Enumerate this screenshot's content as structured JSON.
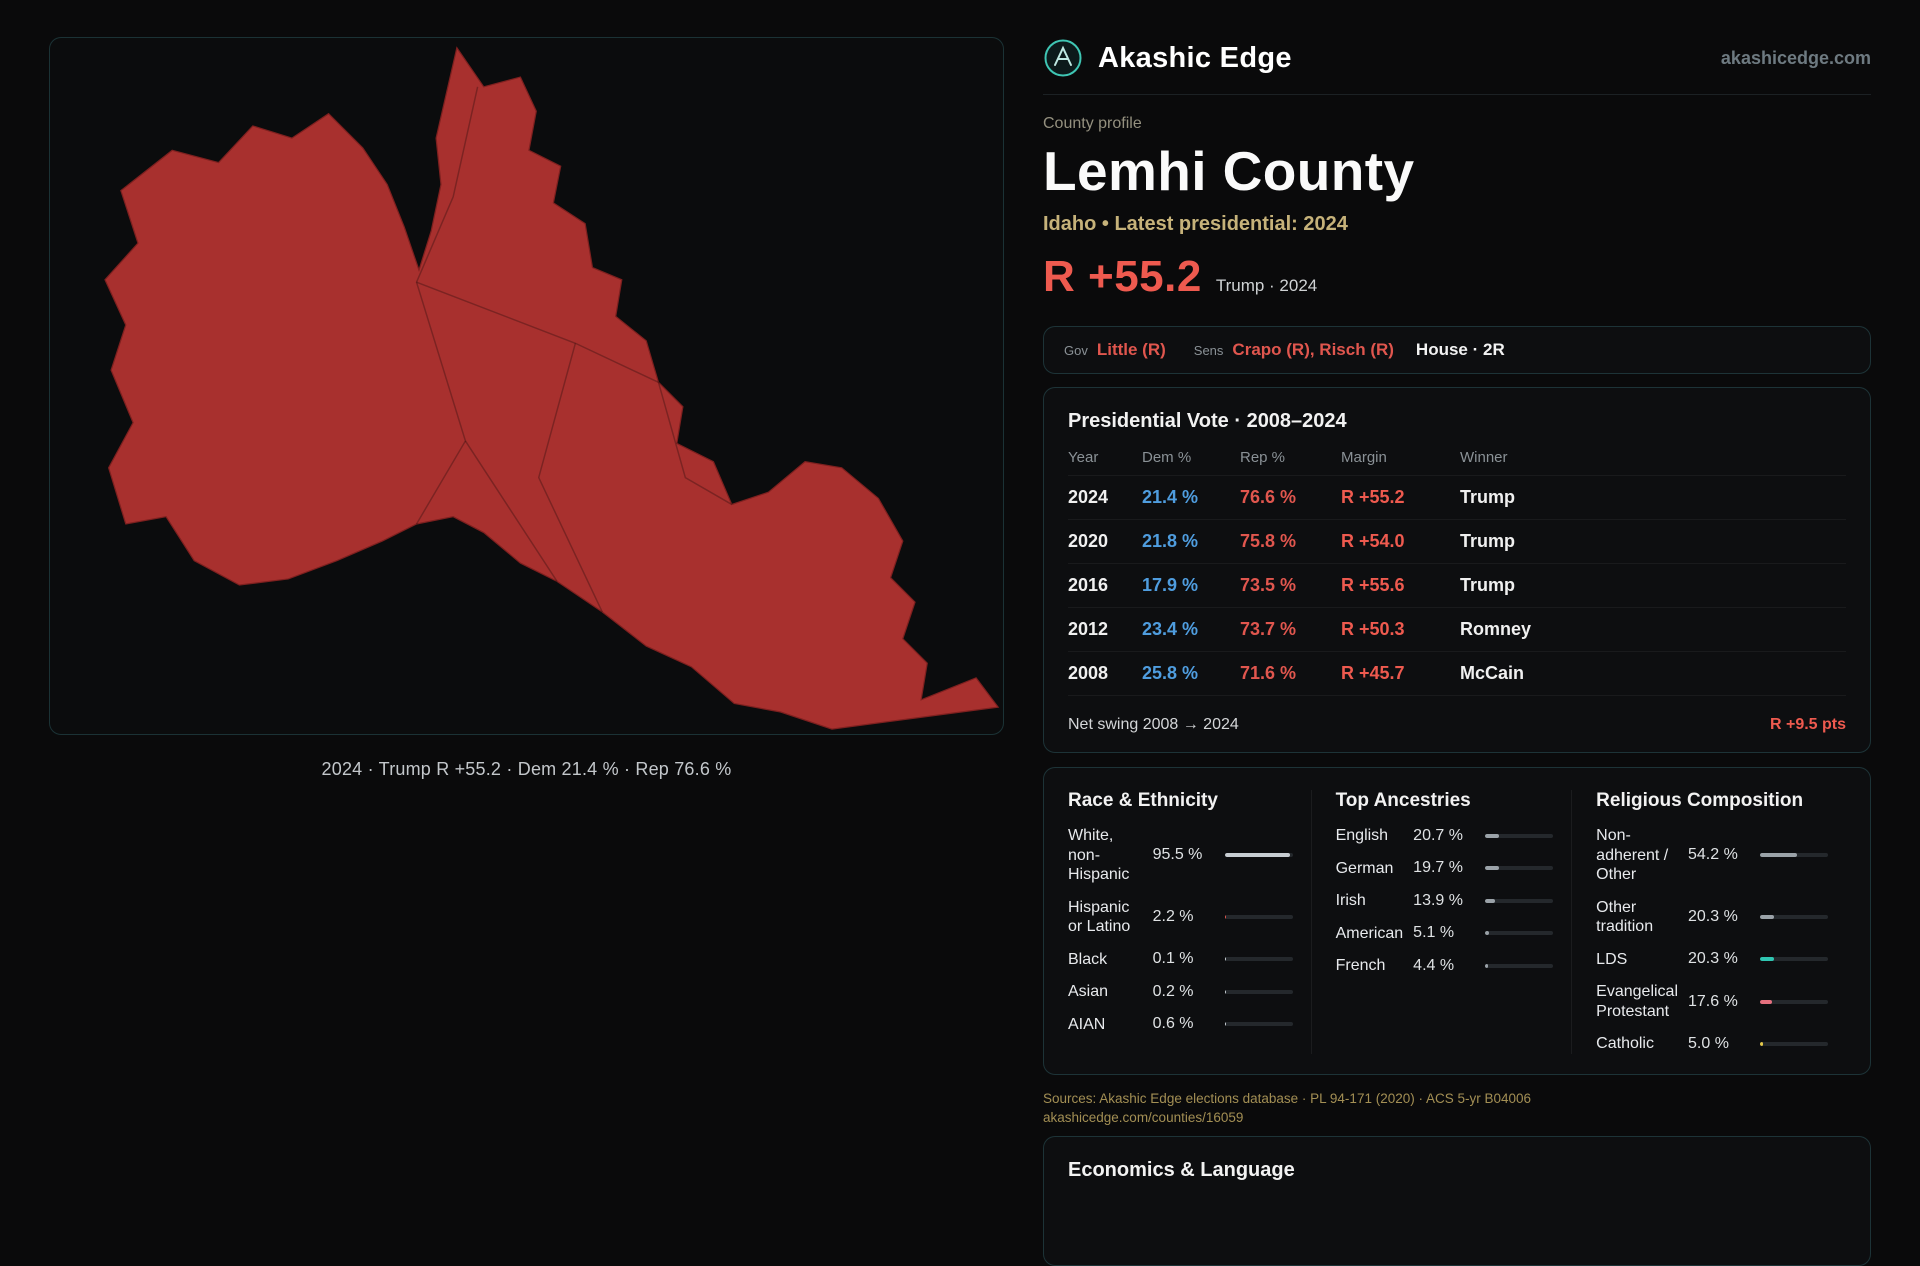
{
  "colors": {
    "accent_red": "#ee5a4f",
    "rep_red": "#e0564e",
    "dem_blue": "#4f9ddf",
    "teal": "#3fc6b4",
    "gold": "#c6b27a",
    "map_fill": "#a8302e"
  },
  "header": {
    "brand": "Akashic Edge",
    "domain": "akashicedge.com"
  },
  "profile": {
    "eyebrow": "County profile",
    "title": "Lemhi County",
    "subtitle": "Idaho • Latest presidential: 2024",
    "margin_big": "R +55.2",
    "margin_caption": "Trump · 2024"
  },
  "officials": {
    "gov_label": "Gov",
    "gov_value": "Little (R)",
    "sens_label": "Sens",
    "sens_value": "Crapo (R), Risch (R)",
    "house": "House · 2R"
  },
  "map": {
    "caption": "2024 · Trump R +55.2 · Dem 21.4 % · Rep 76.6 %"
  },
  "vote_table": {
    "title": "Presidential Vote · 2008–2024",
    "columns": [
      "Year",
      "Dem %",
      "Rep %",
      "Margin",
      "Winner"
    ],
    "rows": [
      {
        "year": "2024",
        "dem": "21.4 %",
        "rep": "76.6 %",
        "margin": "R +55.2",
        "winner": "Trump"
      },
      {
        "year": "2020",
        "dem": "21.8 %",
        "rep": "75.8 %",
        "margin": "R +54.0",
        "winner": "Trump"
      },
      {
        "year": "2016",
        "dem": "17.9 %",
        "rep": "73.5 %",
        "margin": "R +55.6",
        "winner": "Trump"
      },
      {
        "year": "2012",
        "dem": "23.4 %",
        "rep": "73.7 %",
        "margin": "R +50.3",
        "winner": "Romney"
      },
      {
        "year": "2008",
        "dem": "25.8 %",
        "rep": "71.6 %",
        "margin": "R +45.7",
        "winner": "McCain"
      }
    ],
    "net_swing_label": "Net swing 2008 → 2024",
    "net_swing_value": "R +9.5 pts"
  },
  "demographics": {
    "race": {
      "title": "Race & Ethnicity",
      "rows": [
        {
          "label": "White, non-Hispanic",
          "value": "95.5 %",
          "pct": 95.5,
          "color": "#c7cdd2"
        },
        {
          "label": "Hispanic or Latino",
          "value": "2.2 %",
          "pct": 2.2,
          "color": "#e0564e"
        },
        {
          "label": "Black",
          "value": "0.1 %",
          "pct": 0.1,
          "color": "#c7cdd2"
        },
        {
          "label": "Asian",
          "value": "0.2 %",
          "pct": 0.2,
          "color": "#c7cdd2"
        },
        {
          "label": "AIAN",
          "value": "0.6 %",
          "pct": 0.6,
          "color": "#c7cdd2"
        }
      ]
    },
    "ancestries": {
      "title": "Top Ancestries",
      "rows": [
        {
          "label": "English",
          "value": "20.7 %",
          "pct": 20.7,
          "color": "#9aa2a8"
        },
        {
          "label": "German",
          "value": "19.7 %",
          "pct": 19.7,
          "color": "#9aa2a8"
        },
        {
          "label": "Irish",
          "value": "13.9 %",
          "pct": 13.9,
          "color": "#9aa2a8"
        },
        {
          "label": "American",
          "value": "5.1 %",
          "pct": 5.1,
          "color": "#9aa2a8"
        },
        {
          "label": "French",
          "value": "4.4 %",
          "pct": 4.4,
          "color": "#9aa2a8"
        }
      ]
    },
    "religion": {
      "title": "Religious Composition",
      "rows": [
        {
          "label": "Non-adherent / Other",
          "value": "54.2 %",
          "pct": 54.2,
          "color": "#9aa2a8"
        },
        {
          "label": "Other tradition",
          "value": "20.3 %",
          "pct": 20.3,
          "color": "#9aa2a8"
        },
        {
          "label": "LDS",
          "value": "20.3 %",
          "pct": 20.3,
          "color": "#2fc6b2"
        },
        {
          "label": "Evangelical Protestant",
          "value": "17.6 %",
          "pct": 17.6,
          "color": "#e5707e"
        },
        {
          "label": "Catholic",
          "value": "5.0 %",
          "pct": 5.0,
          "color": "#e3c84a"
        }
      ]
    }
  },
  "sources": {
    "line1": "Sources: Akashic Edge elections database · PL 94-171 (2020) · ACS 5-yr B04006",
    "line2": "akashicedge.com/counties/16059"
  },
  "economics": {
    "title": "Economics & Language"
  }
}
